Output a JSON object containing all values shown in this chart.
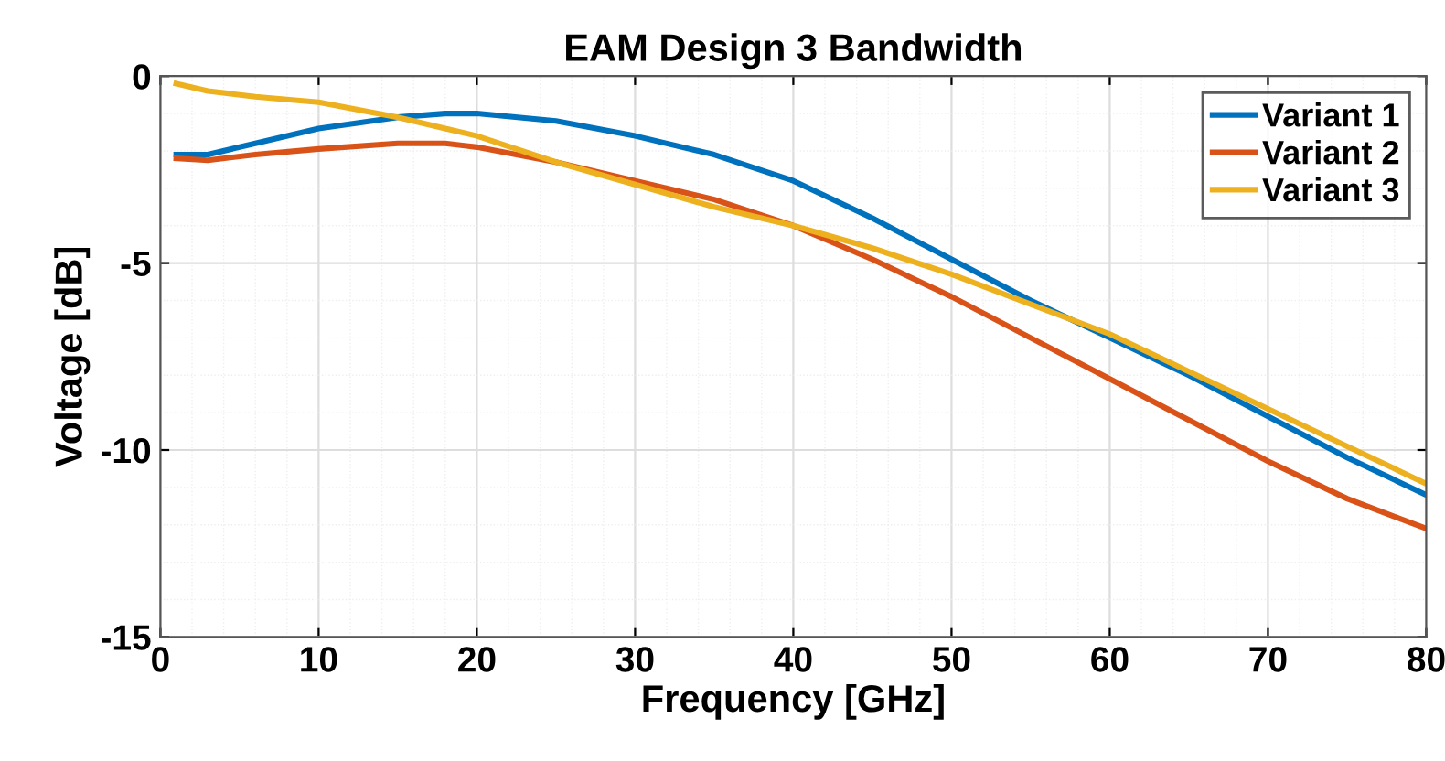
{
  "chart_data": {
    "type": "line",
    "title": "EAM Design 3 Bandwidth",
    "xlabel": "Frequency [GHz]",
    "ylabel": "Voltage [dB]",
    "x": [
      1,
      3,
      6,
      10,
      15,
      18,
      20,
      25,
      30,
      35,
      40,
      45,
      50,
      55,
      60,
      65,
      70,
      75,
      80
    ],
    "series": [
      {
        "name": "Variant 1",
        "color": "#0072bd",
        "values": [
          -2.1,
          -2.1,
          -1.8,
          -1.4,
          -1.1,
          -1.0,
          -1.0,
          -1.2,
          -1.6,
          -2.1,
          -2.8,
          -3.8,
          -4.9,
          -6.0,
          -7.0,
          -8.0,
          -9.1,
          -10.2,
          -11.2
        ]
      },
      {
        "name": "Variant 2",
        "color": "#d95319",
        "values": [
          -2.2,
          -2.25,
          -2.1,
          -1.95,
          -1.8,
          -1.8,
          -1.9,
          -2.3,
          -2.8,
          -3.3,
          -4.0,
          -4.9,
          -5.9,
          -7.0,
          -8.1,
          -9.2,
          -10.3,
          -11.3,
          -12.1
        ]
      },
      {
        "name": "Variant 3",
        "color": "#edb120",
        "values": [
          -0.2,
          -0.4,
          -0.55,
          -0.7,
          -1.1,
          -1.4,
          -1.6,
          -2.3,
          -2.9,
          -3.5,
          -4.0,
          -4.6,
          -5.3,
          -6.1,
          -6.9,
          -7.9,
          -8.9,
          -9.9,
          -10.9
        ]
      }
    ],
    "xlim": [
      0,
      80
    ],
    "xticks": [
      0,
      10,
      20,
      30,
      40,
      50,
      60,
      70,
      80
    ],
    "ylim": [
      -15,
      0
    ],
    "yticks": [
      -15,
      -10,
      -5,
      0
    ],
    "grid": true,
    "legend": "top right",
    "marker": "none",
    "line_style": "solid"
  }
}
